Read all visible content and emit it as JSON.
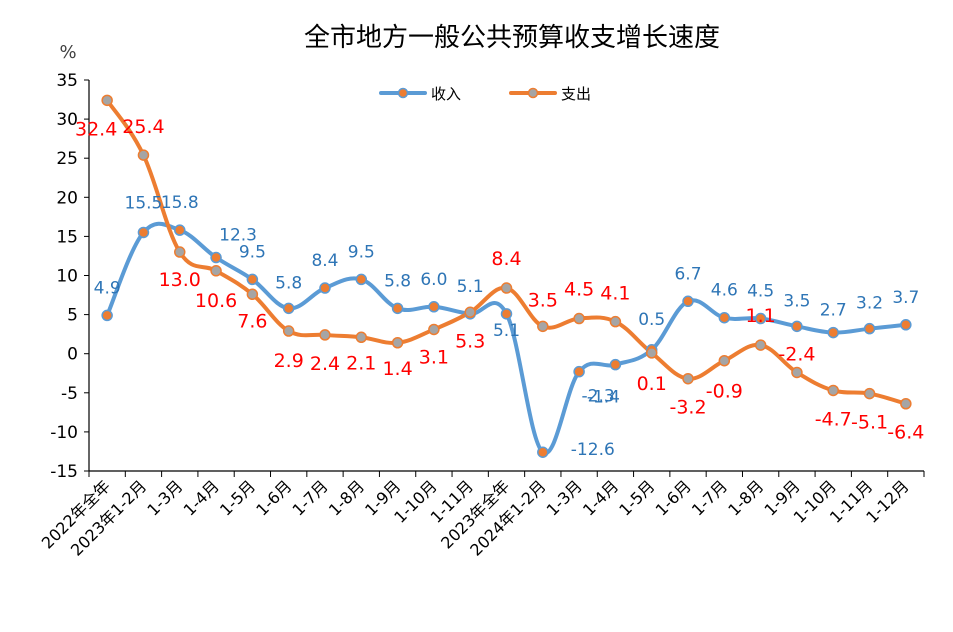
{
  "chart_data": {
    "type": "line",
    "title": "全市地方一般公共预算收支增长速度",
    "ylabel": "%",
    "xlabel": "",
    "ylim": [
      -15,
      35
    ],
    "yticks": [
      35,
      30,
      25,
      20,
      15,
      10,
      5,
      0,
      -5,
      -10,
      -15
    ],
    "categories": [
      "2022年全年",
      "2023年1-2月",
      "1-3月",
      "1-4月",
      "1-5月",
      "1-6月",
      "1-7月",
      "1-8月",
      "1-9月",
      "1-10月",
      "1-11月",
      "2023年全年",
      "2024年1-2月",
      "1-3月",
      "1-4月",
      "1-5月",
      "1-6月",
      "1-7月",
      "1-8月",
      "1-9月",
      "1-10月",
      "1-11月",
      "1-12月"
    ],
    "series": [
      {
        "name": "收入",
        "color": "#5b9bd5",
        "label_color": "#2e75b6",
        "marker_color": "#ed7d31",
        "values": [
          4.9,
          15.5,
          15.8,
          12.3,
          9.5,
          5.8,
          8.4,
          9.5,
          5.8,
          6.0,
          5.1,
          5.1,
          -12.6,
          -2.3,
          -1.4,
          0.5,
          6.7,
          4.6,
          4.5,
          3.5,
          2.7,
          3.2,
          3.7
        ],
        "labels": [
          "4.9",
          "15.5",
          "15.8",
          "12.3",
          "9.5",
          "5.8",
          "8.4",
          "9.5",
          "5.8",
          "6.0",
          "5.1",
          "5.1",
          "-12.6",
          "-2.3",
          "-1.4",
          "0.5",
          "6.7",
          "4.6",
          "4.5",
          "3.5",
          "2.7",
          "3.2",
          "3.7"
        ]
      },
      {
        "name": "支出",
        "color": "#ed7d31",
        "label_color": "#ff0000",
        "marker_color": "#a5a5a5",
        "values": [
          32.4,
          25.4,
          13.0,
          10.6,
          7.6,
          2.9,
          2.4,
          2.1,
          1.4,
          3.1,
          5.3,
          8.4,
          3.5,
          4.5,
          4.1,
          0.1,
          -3.2,
          -0.9,
          1.1,
          -2.4,
          -4.7,
          -5.1,
          -6.4
        ],
        "labels": [
          "32.4",
          "25.4",
          "13.0",
          "10.6",
          "7.6",
          "2.9",
          "2.4",
          "2.1",
          "1.4",
          "3.1",
          "5.3",
          "8.4",
          "3.5",
          "4.5",
          "4.1",
          "0.1",
          "-3.2",
          "-0.9",
          "1.1",
          "-2.4",
          "-4.7",
          "-5.1",
          "-6.4"
        ]
      }
    ],
    "legend": {
      "position": "top-center"
    },
    "grid": false
  }
}
